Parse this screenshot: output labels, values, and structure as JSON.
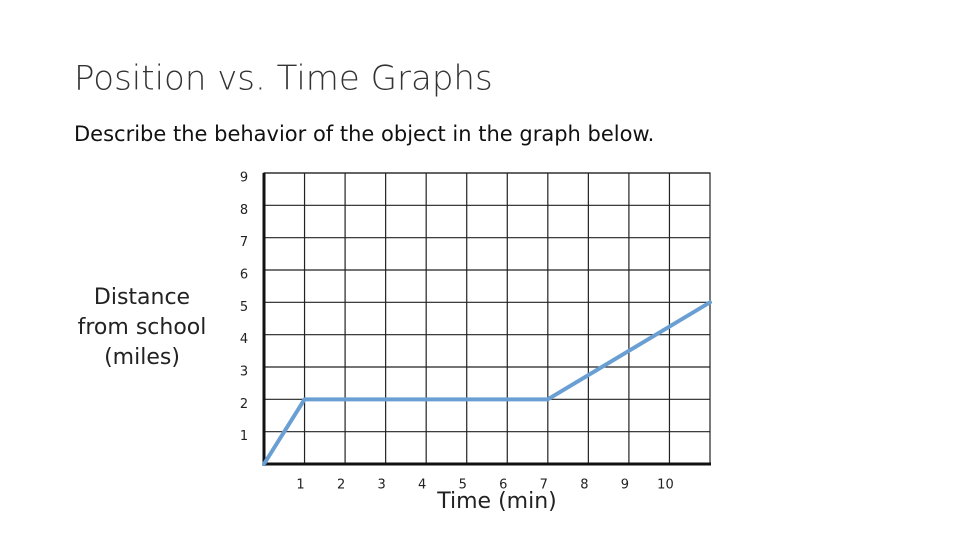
{
  "chart_data": {
    "type": "line",
    "title": "Position vs. Time Graphs",
    "subtitle": "Describe the behavior of the object in the graph below.",
    "xlabel": "Time (min)",
    "ylabel": [
      "Distance",
      "from school",
      "(miles)"
    ],
    "x": [
      0,
      1,
      7,
      11
    ],
    "series": [
      {
        "color": "#6a9fd4",
        "values": [
          0,
          2,
          2,
          5
        ]
      }
    ],
    "xlim": [
      0,
      11
    ],
    "ylim": [
      0,
      9
    ],
    "xticks": [
      1,
      2,
      3,
      4,
      5,
      6,
      7,
      8,
      9,
      10
    ],
    "yticks": [
      1,
      2,
      3,
      4,
      5,
      6,
      7,
      8,
      9
    ],
    "grid": true
  }
}
